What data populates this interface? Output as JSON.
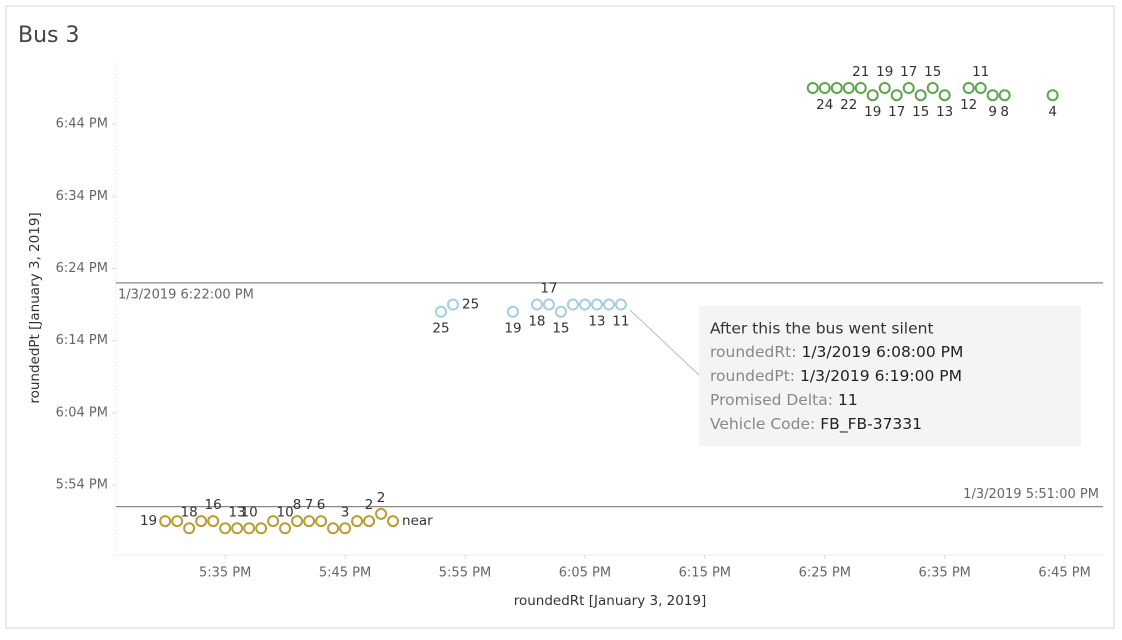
{
  "chart_data": {
    "type": "scatter",
    "title": "Bus 3",
    "x_label": "roundedRt [January 3, 2019]",
    "y_label": "roundedPt [January 3, 2019]",
    "xlim": [
      1045.9,
      1128.2
    ],
    "ylim": [
      1064.3,
      1132.6
    ],
    "xticks": [
      {
        "value": 1055,
        "label": "5:35 PM"
      },
      {
        "value": 1065,
        "label": "5:45 PM"
      },
      {
        "value": 1075,
        "label": "5:55 PM"
      },
      {
        "value": 1085,
        "label": "6:05 PM"
      },
      {
        "value": 1095,
        "label": "6:15 PM"
      },
      {
        "value": 1105,
        "label": "6:25 PM"
      },
      {
        "value": 1115,
        "label": "6:35 PM"
      },
      {
        "value": 1125,
        "label": "6:45 PM"
      }
    ],
    "yticks": [
      {
        "value": 1074,
        "label": "5:54 PM"
      },
      {
        "value": 1084,
        "label": "6:04 PM"
      },
      {
        "value": 1094,
        "label": "6:14 PM"
      },
      {
        "value": 1104,
        "label": "6:24 PM"
      },
      {
        "value": 1114,
        "label": "6:34 PM"
      },
      {
        "value": 1124,
        "label": "6:44 PM"
      }
    ],
    "reference_lines": [
      {
        "value": 1102,
        "label": "1/3/2019 6:22:00 PM"
      },
      {
        "value": 1071,
        "label": "1/3/2019 5:51:00 PM"
      }
    ],
    "series": [
      {
        "color": "#bb9c33",
        "x": [
          1050,
          1051,
          1052,
          1053,
          1054,
          1055,
          1056,
          1057,
          1058,
          1059,
          1060,
          1061,
          1062,
          1063,
          1064,
          1065,
          1066,
          1067,
          1068,
          1069
        ],
        "values": [
          1069,
          1069,
          1068,
          1069,
          1069,
          1068,
          1068,
          1068,
          1068,
          1069,
          1068,
          1069,
          1069,
          1069,
          1068,
          1068,
          1069,
          1069,
          1070,
          1069
        ],
        "labels": [
          19,
          null,
          18,
          null,
          16,
          null,
          13,
          10,
          null,
          null,
          10,
          8,
          7,
          6,
          null,
          3,
          null,
          2,
          2,
          "near"
        ]
      },
      {
        "color": "#a3cde2",
        "x": [
          1073,
          1074,
          1079,
          1081,
          1082,
          1083,
          1084,
          1085,
          1086,
          1087,
          1088
        ],
        "values": [
          1098,
          1099,
          1098,
          1099,
          1099,
          1098,
          1099,
          1099,
          1099,
          1099,
          1099
        ],
        "labels": [
          25,
          25,
          19,
          18,
          17,
          15,
          null,
          null,
          13,
          null,
          11
        ]
      },
      {
        "color": "#5aa64a",
        "x": [
          1104,
          1105,
          1106,
          1107,
          1108,
          1109,
          1110,
          1111,
          1112,
          1113,
          1114,
          1115,
          1117,
          1118,
          1119,
          1120,
          1124
        ],
        "values": [
          1129,
          1129,
          1129,
          1129,
          1129,
          1128,
          1129,
          1128,
          1129,
          1128,
          1129,
          1128,
          1129,
          1129,
          1128,
          1128,
          1128
        ],
        "labels": [
          null,
          24,
          null,
          22,
          21,
          19,
          19,
          17,
          17,
          15,
          15,
          13,
          12,
          11,
          9,
          8,
          4
        ]
      }
    ],
    "tooltip": {
      "title": "After this the bus went silent",
      "lines": [
        {
          "label": "roundedRt:",
          "value": "1/3/2019 6:08:00 PM"
        },
        {
          "label": "roundedPt:",
          "value": "1/3/2019 6:19:00 PM"
        },
        {
          "label": "Promised Delta:",
          "value": "11"
        },
        {
          "label": "Vehicle Code:",
          "value": "FB_FB-37331"
        }
      ]
    }
  }
}
